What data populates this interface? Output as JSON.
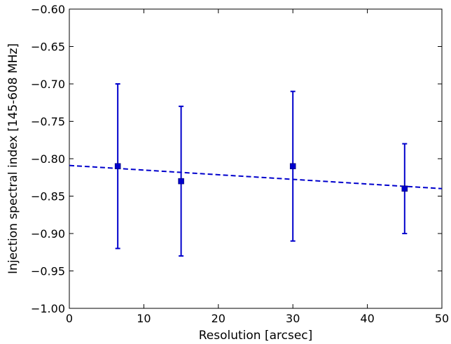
{
  "chart_data": {
    "type": "scatter",
    "title": "",
    "xlabel": "Resolution [arcsec]",
    "ylabel": "Injection spectral index [145-608 MHz]",
    "xlim": [
      0,
      50
    ],
    "ylim": [
      -1.0,
      -0.6
    ],
    "x_ticks": [
      0,
      10,
      20,
      30,
      40,
      50
    ],
    "y_ticks": [
      -1.0,
      -0.95,
      -0.9,
      -0.85,
      -0.8,
      -0.75,
      -0.7,
      -0.65,
      -0.6
    ],
    "x_tick_labels": [
      "0",
      "10",
      "20",
      "30",
      "40",
      "50"
    ],
    "y_tick_labels": [
      "−1.00",
      "−0.95",
      "−0.90",
      "−0.85",
      "−0.80",
      "−0.75",
      "−0.70",
      "−0.65",
      "−0.60"
    ],
    "grid": false,
    "legend": "none",
    "color": "#0000cc",
    "points": [
      {
        "x": 6.5,
        "y": -0.81,
        "y_low": -0.92,
        "y_high": -0.7
      },
      {
        "x": 15,
        "y": -0.83,
        "y_low": -0.93,
        "y_high": -0.73
      },
      {
        "x": 30,
        "y": -0.81,
        "y_low": -0.91,
        "y_high": -0.71
      },
      {
        "x": 45,
        "y": -0.84,
        "y_low": -0.9,
        "y_high": -0.78
      }
    ],
    "fit_line": {
      "style": "dashed",
      "x": [
        0,
        50
      ],
      "y": [
        -0.809,
        -0.84
      ]
    }
  }
}
